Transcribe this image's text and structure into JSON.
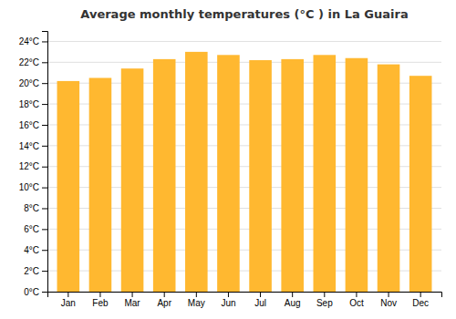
{
  "chart_data": {
    "type": "bar",
    "title": "Average monthly temperatures (°C ) in La Guaira",
    "categories": [
      "Jan",
      "Feb",
      "Mar",
      "Apr",
      "May",
      "Jun",
      "Jul",
      "Aug",
      "Sep",
      "Oct",
      "Nov",
      "Dec"
    ],
    "values": [
      20.2,
      20.5,
      21.4,
      22.3,
      23.0,
      22.7,
      22.2,
      22.3,
      22.7,
      22.4,
      21.8,
      20.7
    ],
    "color": "#FFB830",
    "ylim": [
      0,
      25
    ],
    "yticks": [
      {
        "value": 0,
        "label": "0°C"
      },
      {
        "value": 2,
        "label": "2°C"
      },
      {
        "value": 4,
        "label": "4°C"
      },
      {
        "value": 6,
        "label": "6°C"
      },
      {
        "value": 8,
        "label": "8°C"
      },
      {
        "value": 10,
        "label": "10°C"
      },
      {
        "value": 12,
        "label": "12°C"
      },
      {
        "value": 14,
        "label": "14°C"
      },
      {
        "value": 16,
        "label": "16°C"
      },
      {
        "value": 18,
        "label": "18°C"
      },
      {
        "value": 20,
        "label": "20°C"
      },
      {
        "value": 22,
        "label": "22°C"
      },
      {
        "value": 24,
        "label": "24°C"
      }
    ],
    "grid": true
  }
}
